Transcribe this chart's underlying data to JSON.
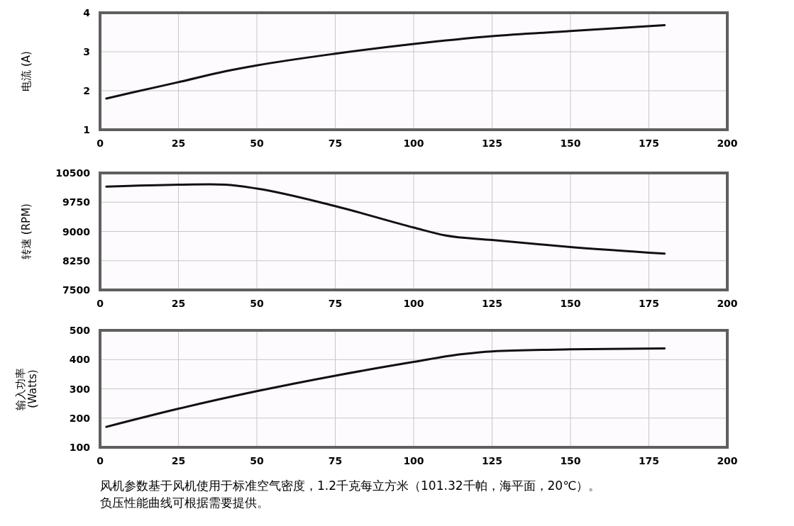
{
  "chart_data": [
    {
      "type": "line",
      "ylabel": "电流 (A)",
      "x": [
        2,
        10,
        25,
        40,
        50,
        75,
        100,
        125,
        150,
        180
      ],
      "series": [
        {
          "color": "#111111",
          "values": [
            1.8,
            1.95,
            2.22,
            2.5,
            2.65,
            2.95,
            3.2,
            3.4,
            3.53,
            3.68
          ]
        }
      ],
      "xlim": [
        0,
        200
      ],
      "xticks": [
        0,
        25,
        50,
        75,
        100,
        125,
        150,
        175,
        200
      ],
      "ylim": [
        1,
        4
      ],
      "yticks": [
        1,
        2,
        3,
        4
      ],
      "grid": true,
      "marker": "none",
      "line_style": "solid"
    },
    {
      "type": "line",
      "ylabel": "转速 (RPM)",
      "x": [
        2,
        25,
        35,
        40,
        50,
        75,
        100,
        110,
        125,
        150,
        180
      ],
      "series": [
        {
          "color": "#111111",
          "values": [
            10150,
            10200,
            10210,
            10200,
            10100,
            9650,
            9100,
            8900,
            8780,
            8600,
            8430
          ]
        }
      ],
      "xlim": [
        0,
        200
      ],
      "xticks": [
        0,
        25,
        50,
        75,
        100,
        125,
        150,
        175,
        200
      ],
      "ylim": [
        7500,
        10500
      ],
      "yticks": [
        7500,
        8250,
        9000,
        9750,
        10500
      ],
      "grid": true,
      "marker": "none",
      "line_style": "solid"
    },
    {
      "type": "line",
      "ylabel": "输入功率\n(Watts)",
      "x": [
        2,
        25,
        50,
        75,
        100,
        115,
        125,
        150,
        180
      ],
      "series": [
        {
          "color": "#111111",
          "values": [
            170,
            232,
            292,
            345,
            392,
            418,
            428,
            435,
            438
          ]
        }
      ],
      "xlim": [
        0,
        200
      ],
      "xticks": [
        0,
        25,
        50,
        75,
        100,
        125,
        150,
        175,
        200
      ],
      "ylim": [
        100,
        500
      ],
      "yticks": [
        100,
        200,
        300,
        400,
        500
      ],
      "grid": true,
      "marker": "none",
      "line_style": "solid",
      "annotations": [
        "风机参数基于风机使用于标准空气密度，1.2千克每立方米（101.32千帕，海平面，20℃）。",
        "负压性能曲线可根据需要提供。"
      ]
    }
  ]
}
